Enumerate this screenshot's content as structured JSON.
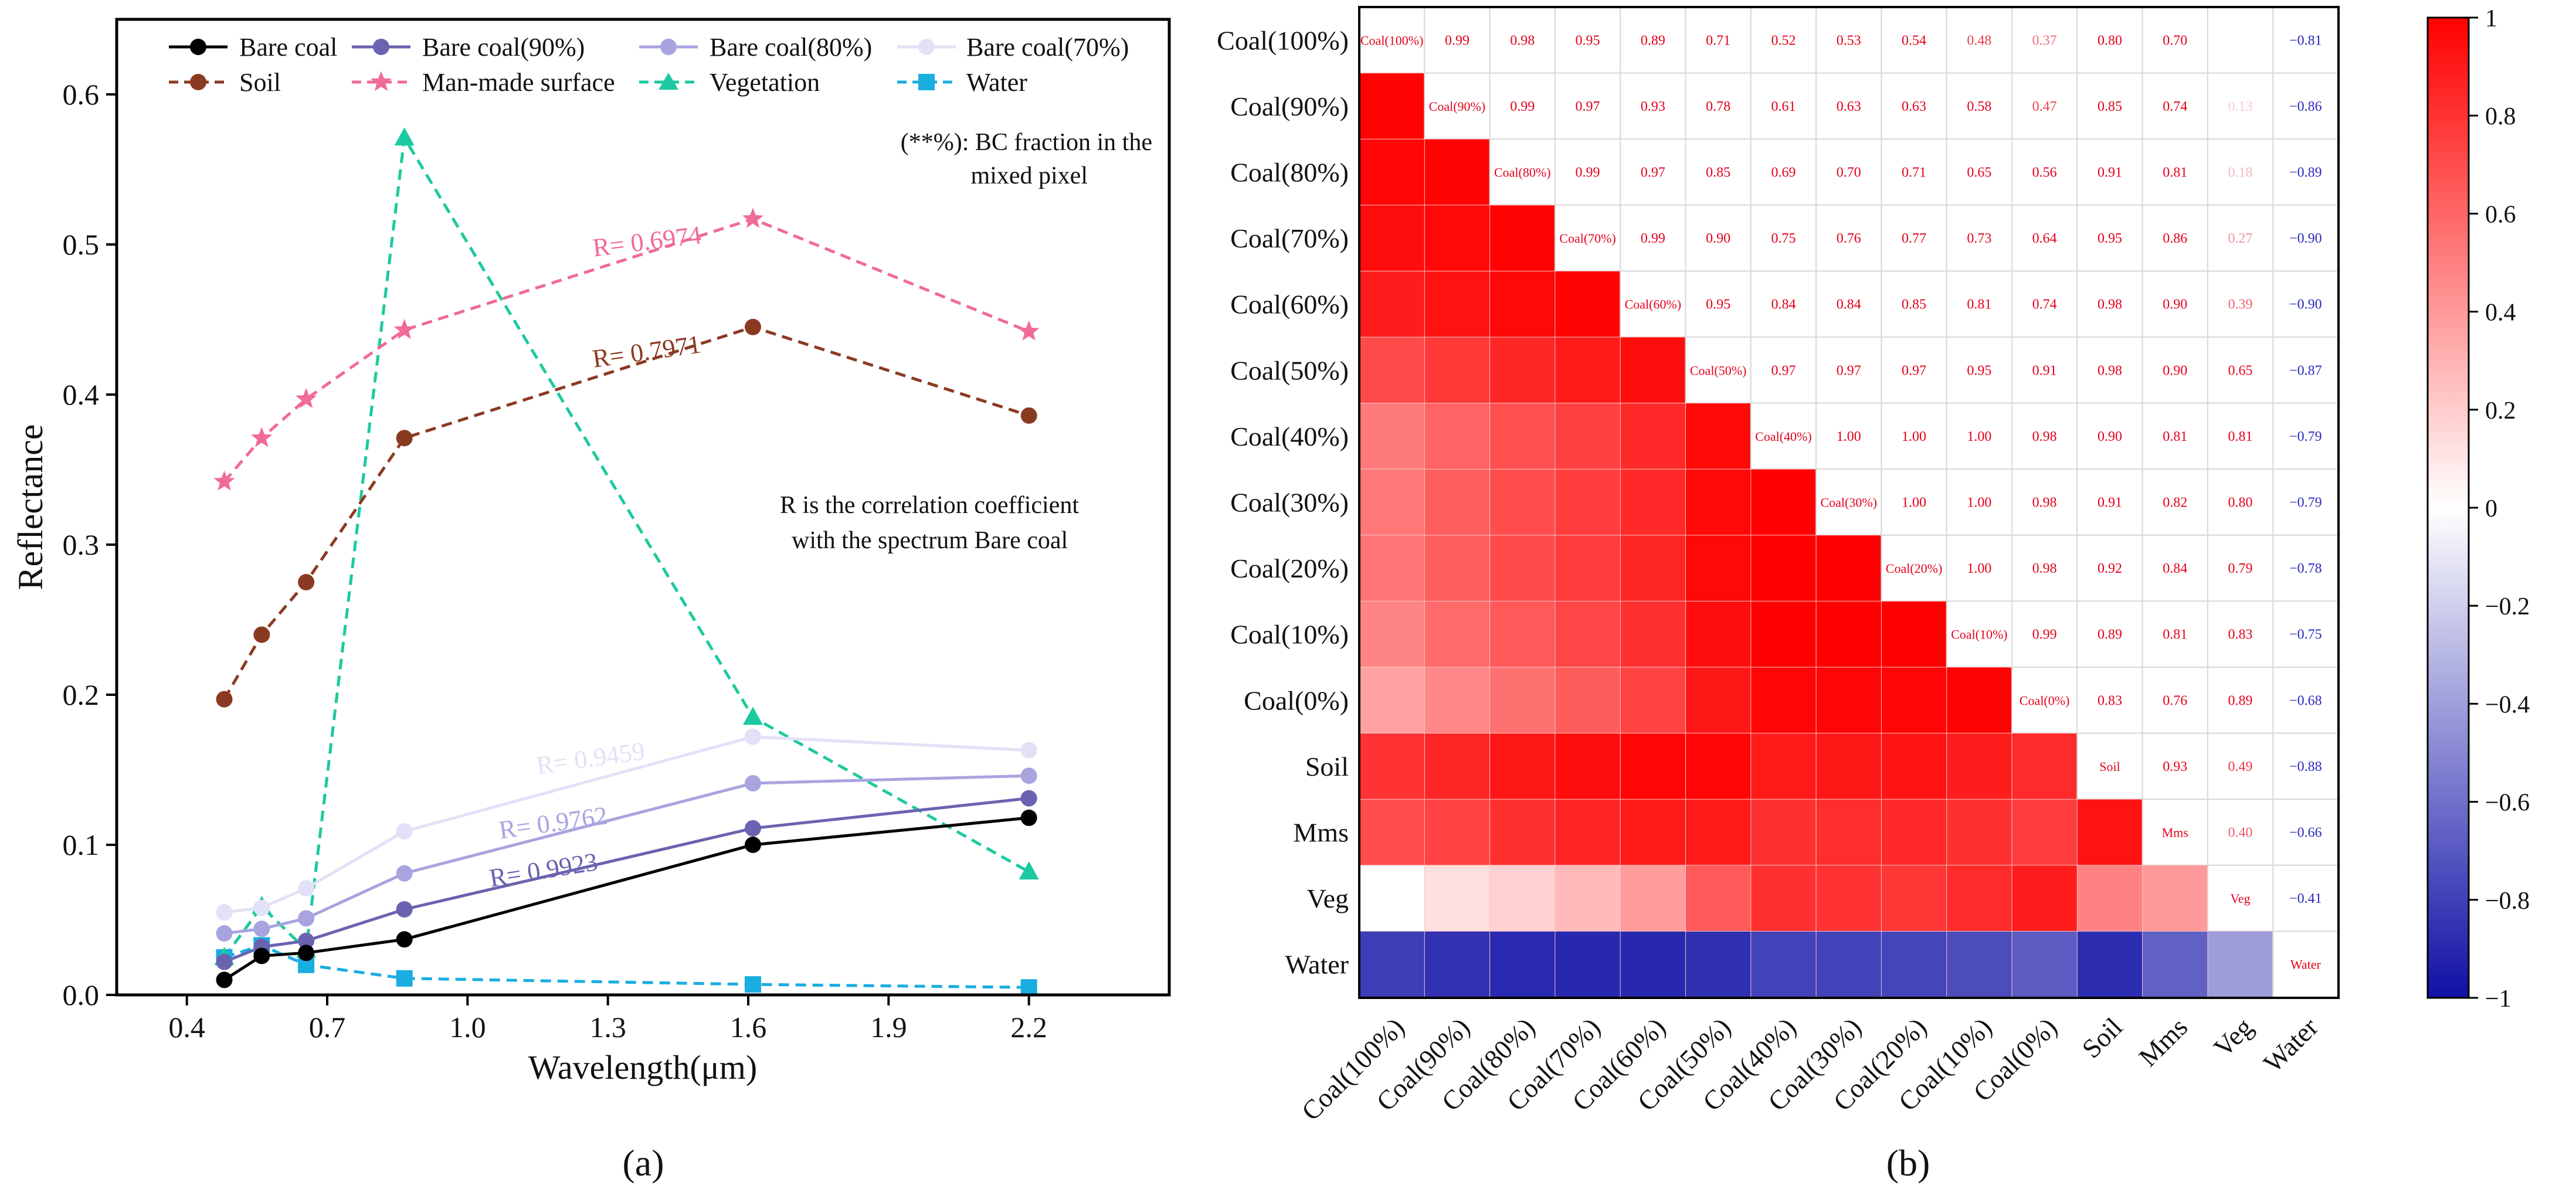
{
  "chart_data": [
    {
      "type": "line",
      "panel_label": "(a)",
      "xlabel": "Wavelength(μm)",
      "ylabel": "Reflectance",
      "xlim": [
        0.25,
        2.5
      ],
      "ylim": [
        0,
        0.65
      ],
      "x_ticks": [
        "0.4",
        "0.7",
        "1.0",
        "1.3",
        "1.6",
        "1.9",
        "2.2"
      ],
      "y_ticks": [
        "0.0",
        "0.1",
        "0.2",
        "0.3",
        "0.4",
        "0.5",
        "0.6"
      ],
      "x": [
        0.48,
        0.56,
        0.655,
        0.865,
        1.61,
        2.2
      ],
      "series": [
        {
          "name": "Bare coal",
          "color": "#000000",
          "dash": "solid",
          "marker": "circle",
          "values": [
            0.01,
            0.026,
            0.028,
            0.037,
            0.1,
            0.118
          ]
        },
        {
          "name": "Bare coal(90%)",
          "color": "#6A63B0",
          "dash": "solid",
          "marker": "circle",
          "values": [
            0.022,
            0.032,
            0.036,
            0.057,
            0.111,
            0.131
          ]
        },
        {
          "name": "Bare coal(80%)",
          "color": "#A8A4E0",
          "dash": "solid",
          "marker": "circle",
          "values": [
            0.041,
            0.044,
            0.051,
            0.081,
            0.141,
            0.146
          ]
        },
        {
          "name": "Bare coal(70%)",
          "color": "#E3E1F7",
          "dash": "solid",
          "marker": "circle",
          "values": [
            0.055,
            0.058,
            0.071,
            0.109,
            0.172,
            0.163
          ]
        },
        {
          "name": "Soil",
          "color": "#8B3A22",
          "dash": "dashed",
          "marker": "circle",
          "values": [
            0.197,
            0.24,
            0.275,
            0.371,
            0.445,
            0.386
          ]
        },
        {
          "name": "Man-made surface",
          "color": "#F06A9A",
          "dash": "dashed",
          "marker": "star",
          "values": [
            0.342,
            0.371,
            0.397,
            0.443,
            0.517,
            0.442
          ]
        },
        {
          "name": "Vegetation",
          "color": "#1DC9A0",
          "dash": "dashed",
          "marker": "triangle",
          "values": [
            0.025,
            0.059,
            0.03,
            0.571,
            0.185,
            0.082
          ]
        },
        {
          "name": "Water",
          "color": "#1AADE0",
          "dash": "dashed",
          "marker": "square",
          "values": [
            0.025,
            0.033,
            0.02,
            0.011,
            0.007,
            0.005
          ]
        }
      ],
      "annotations": [
        {
          "text": "R= 0.6974",
          "color": "#F06A9A",
          "x": 1.27,
          "y": 0.492,
          "angle": -7
        },
        {
          "text": "R= 0.7971",
          "color": "#8B3A22",
          "x": 1.27,
          "y": 0.418,
          "angle": -8
        },
        {
          "text": "R= 0.9459",
          "color": "#E3E1F7",
          "x": 1.15,
          "y": 0.147,
          "angle": -8
        },
        {
          "text": "R= 0.9762",
          "color": "#A8A4E0",
          "x": 1.07,
          "y": 0.104,
          "angle": -8
        },
        {
          "text": "R= 0.9923",
          "color": "#6A63B0",
          "x": 1.05,
          "y": 0.072,
          "angle": -9
        }
      ],
      "notes": [
        "(**%): BC fraction in the",
        "mixed pixel",
        "R is the correlation coefficient",
        "with the spectrum Bare coal"
      ]
    },
    {
      "type": "heatmap",
      "panel_label": "(b)",
      "labels": [
        "Coal(100%)",
        "Coal(90%)",
        "Coal(80%)",
        "Coal(70%)",
        "Coal(60%)",
        "Coal(50%)",
        "Coal(40%)",
        "Coal(30%)",
        "Coal(20%)",
        "Coal(10%)",
        "Coal(0%)",
        "Soil",
        "Mms",
        "Veg",
        "Water"
      ],
      "diag_labels": [
        "Coal(100%)",
        "Coal(90%)",
        "Coal(80%)",
        "Coal(70%)",
        "Coal(60%)",
        "Coal(50%)",
        "Coal(40%)",
        "Coal(30%)",
        "Coal(20%)",
        "Coal(10%)",
        "Coal(0%)",
        "Soil",
        "Mms",
        "Veg",
        "Water"
      ],
      "upper": [
        [
          null,
          "0.99",
          "0.98",
          "0.95",
          "0.89",
          "0.71",
          "0.52",
          "0.53",
          "0.54",
          "0.48",
          "0.37",
          "0.80",
          "0.70",
          "",
          "−0.81"
        ],
        [
          null,
          null,
          "0.99",
          "0.97",
          "0.93",
          "0.78",
          "0.61",
          "0.63",
          "0.63",
          "0.58",
          "0.47",
          "0.85",
          "0.74",
          "0.13",
          "−0.86"
        ],
        [
          null,
          null,
          null,
          "0.99",
          "0.97",
          "0.85",
          "0.69",
          "0.70",
          "0.71",
          "0.65",
          "0.56",
          "0.91",
          "0.81",
          "0.18",
          "−0.89"
        ],
        [
          null,
          null,
          null,
          null,
          "0.99",
          "0.90",
          "0.75",
          "0.76",
          "0.77",
          "0.73",
          "0.64",
          "0.95",
          "0.86",
          "0.27",
          "−0.90"
        ],
        [
          null,
          null,
          null,
          null,
          null,
          "0.95",
          "0.84",
          "0.84",
          "0.85",
          "0.81",
          "0.74",
          "0.98",
          "0.90",
          "0.39",
          "−0.90"
        ],
        [
          null,
          null,
          null,
          null,
          null,
          null,
          "0.97",
          "0.97",
          "0.97",
          "0.95",
          "0.91",
          "0.98",
          "0.90",
          "0.65",
          "−0.87"
        ],
        [
          null,
          null,
          null,
          null,
          null,
          null,
          null,
          "1.00",
          "1.00",
          "1.00",
          "0.98",
          "0.90",
          "0.81",
          "0.81",
          "−0.79"
        ],
        [
          null,
          null,
          null,
          null,
          null,
          null,
          null,
          null,
          "1.00",
          "1.00",
          "0.98",
          "0.91",
          "0.82",
          "0.80",
          "−0.79"
        ],
        [
          null,
          null,
          null,
          null,
          null,
          null,
          null,
          null,
          null,
          "1.00",
          "0.98",
          "0.92",
          "0.84",
          "0.79",
          "−0.78"
        ],
        [
          null,
          null,
          null,
          null,
          null,
          null,
          null,
          null,
          null,
          null,
          "0.99",
          "0.89",
          "0.81",
          "0.83",
          "−0.75"
        ],
        [
          null,
          null,
          null,
          null,
          null,
          null,
          null,
          null,
          null,
          null,
          null,
          "0.83",
          "0.76",
          "0.89",
          "−0.68"
        ],
        [
          null,
          null,
          null,
          null,
          null,
          null,
          null,
          null,
          null,
          null,
          null,
          null,
          "0.93",
          "0.49",
          "−0.88"
        ],
        [
          null,
          null,
          null,
          null,
          null,
          null,
          null,
          null,
          null,
          null,
          null,
          null,
          null,
          "0.40",
          "−0.66"
        ],
        [
          null,
          null,
          null,
          null,
          null,
          null,
          null,
          null,
          null,
          null,
          null,
          null,
          null,
          null,
          "−0.41"
        ],
        [
          null,
          null,
          null,
          null,
          null,
          null,
          null,
          null,
          null,
          null,
          null,
          null,
          null,
          null,
          null
        ]
      ],
      "lower": [
        [],
        [
          0.99
        ],
        [
          0.98,
          0.99
        ],
        [
          0.95,
          0.97,
          0.99
        ],
        [
          0.89,
          0.93,
          0.97,
          0.99
        ],
        [
          0.71,
          0.78,
          0.85,
          0.9,
          0.95
        ],
        [
          0.52,
          0.61,
          0.69,
          0.75,
          0.84,
          0.97
        ],
        [
          0.53,
          0.63,
          0.7,
          0.76,
          0.84,
          0.97,
          1.0
        ],
        [
          0.54,
          0.63,
          0.71,
          0.77,
          0.85,
          0.97,
          1.0,
          1.0
        ],
        [
          0.48,
          0.58,
          0.65,
          0.73,
          0.81,
          0.95,
          1.0,
          1.0,
          1.0
        ],
        [
          0.37,
          0.47,
          0.56,
          0.64,
          0.74,
          0.91,
          0.98,
          0.98,
          0.98,
          0.99
        ],
        [
          0.8,
          0.85,
          0.91,
          0.95,
          0.98,
          0.98,
          0.9,
          0.91,
          0.92,
          0.89,
          0.83
        ],
        [
          0.7,
          0.74,
          0.81,
          0.86,
          0.9,
          0.9,
          0.81,
          0.82,
          0.84,
          0.81,
          0.76,
          0.93
        ],
        [
          0.0,
          0.13,
          0.18,
          0.27,
          0.39,
          0.65,
          0.81,
          0.8,
          0.79,
          0.83,
          0.89,
          0.49,
          0.4
        ],
        [
          -0.81,
          -0.86,
          -0.89,
          -0.9,
          -0.9,
          -0.87,
          -0.79,
          -0.79,
          -0.78,
          -0.75,
          -0.68,
          -0.88,
          -0.66,
          -0.41
        ]
      ],
      "colorbar_ticks": [
        "1",
        "0.8",
        "0.6",
        "0.4",
        "0.2",
        "0",
        "−0.2",
        "−0.4",
        "−0.6",
        "−0.8",
        "−1"
      ],
      "vmin": -1,
      "vmax": 1
    }
  ]
}
